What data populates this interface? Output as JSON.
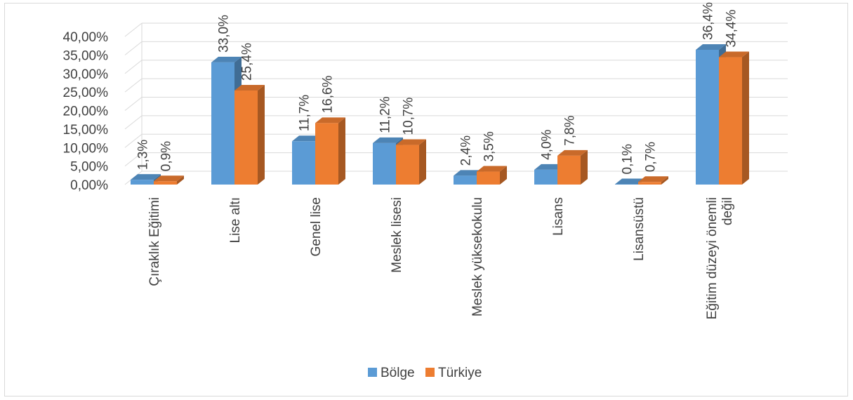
{
  "chart_data": {
    "type": "bar",
    "style": "3d-clustered-column",
    "categories": [
      "Çıraklık Eğitimi",
      "Lise altı",
      "Genel lise",
      "Meslek lisesi",
      "Meslek yüksekokulu",
      "Lisans",
      "Lisansüstü",
      "Eğitim düzeyi önemli değil"
    ],
    "category_lines": [
      [
        "Çıraklık Eğitimi"
      ],
      [
        "Lise altı"
      ],
      [
        "Genel lise"
      ],
      [
        "Meslek lisesi"
      ],
      [
        "Meslek yüksekokulu"
      ],
      [
        "Lisans"
      ],
      [
        "Lisansüstü"
      ],
      [
        "Eğitim düzeyi önemli",
        "değil"
      ]
    ],
    "series": [
      {
        "name": "Bölge",
        "color": "#5B9BD5",
        "values": [
          1.3,
          33.0,
          11.7,
          11.2,
          2.4,
          4.0,
          0.1,
          36.4
        ],
        "labels": [
          "1,3%",
          "33,0%",
          "11,7%",
          "11,2%",
          "2,4%",
          "4,0%",
          "0,1%",
          "36,4%"
        ]
      },
      {
        "name": "Türkiye",
        "color": "#ED7D31",
        "values": [
          0.9,
          25.4,
          16.6,
          10.7,
          3.5,
          7.8,
          0.7,
          34.4
        ],
        "labels": [
          "0,9%",
          "25,4%",
          "16,6%",
          "10,7%",
          "3,5%",
          "7,8%",
          "0,7%",
          "34,4%"
        ]
      }
    ],
    "ylim": [
      0,
      40
    ],
    "yticks": [
      0,
      5,
      10,
      15,
      20,
      25,
      30,
      35,
      40
    ],
    "ytick_labels": [
      "0,00%",
      "5,00%",
      "10,00%",
      "15,00%",
      "20,00%",
      "25,00%",
      "30,00%",
      "35,00%",
      "40,00%"
    ],
    "grid": true,
    "legend_position": "bottom",
    "title": "",
    "xlabel": "",
    "ylabel": ""
  }
}
